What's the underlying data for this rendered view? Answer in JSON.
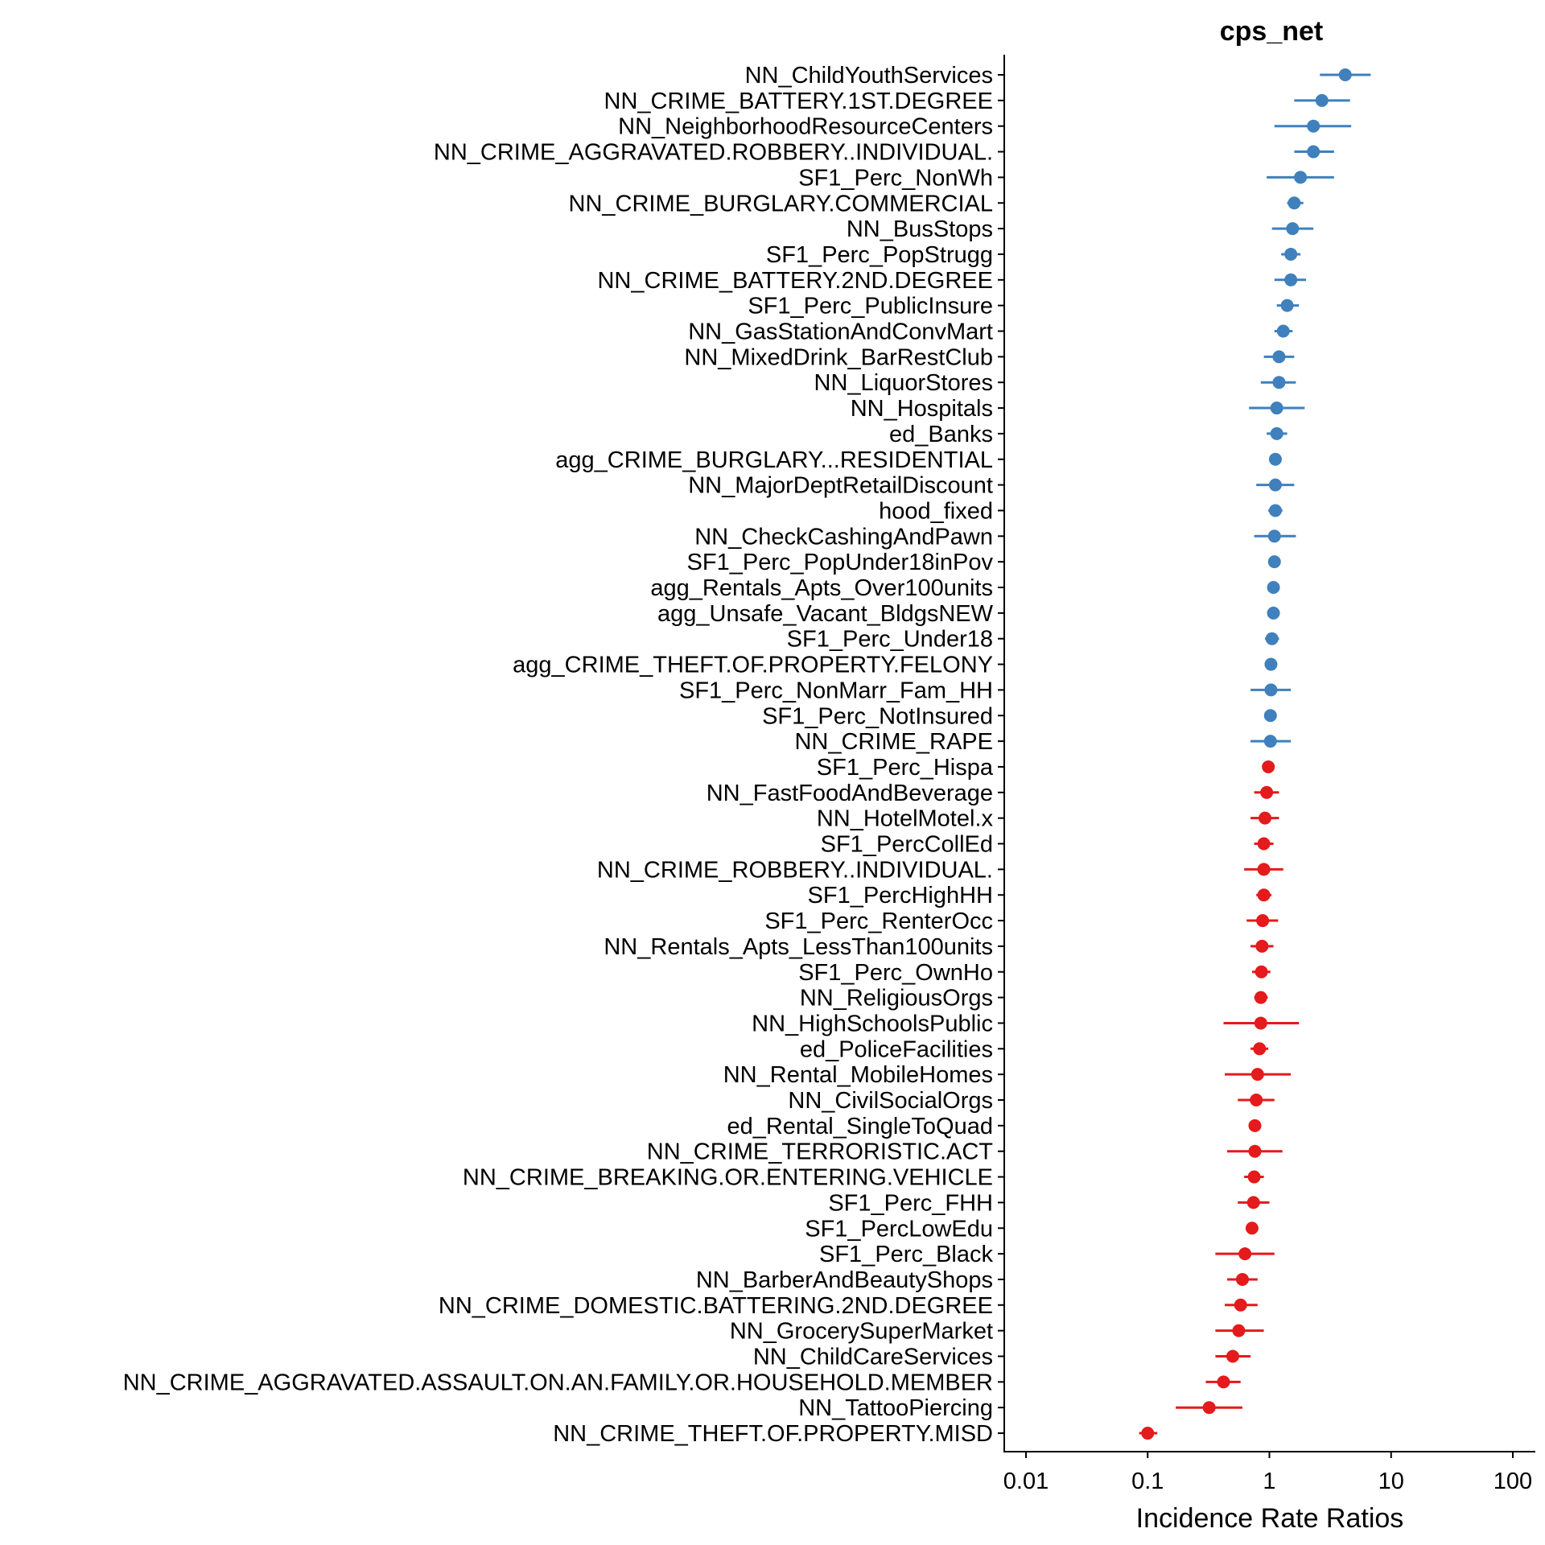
{
  "chart_data": {
    "type": "forest",
    "title": "cps_net",
    "xlabel": "Incidence Rate Ratios",
    "ylabel": "",
    "x_scale": "log10",
    "xlim": [
      0.01,
      100
    ],
    "x_ticks": [
      0.01,
      0.1,
      1,
      10,
      100
    ],
    "x_tick_labels": [
      "0.01",
      "0.1",
      "1",
      "10",
      "100"
    ],
    "grid": false,
    "colors": {
      "above_one": "#3f80bd",
      "below_one": "#e41a1c"
    },
    "rows": [
      {
        "label": "NN_ChildYouthServices",
        "estimate": 4.2,
        "lower": 2.6,
        "upper": 6.8
      },
      {
        "label": "NN_CRIME_BATTERY.1ST.DEGREE",
        "estimate": 2.7,
        "lower": 1.6,
        "upper": 4.6
      },
      {
        "label": "NN_NeighborhoodResourceCenters",
        "estimate": 2.3,
        "lower": 1.1,
        "upper": 4.7
      },
      {
        "label": "NN_CRIME_AGGRAVATED.ROBBERY..INDIVIDUAL.",
        "estimate": 2.3,
        "lower": 1.6,
        "upper": 3.4
      },
      {
        "label": "SF1_Perc_NonWh",
        "estimate": 1.8,
        "lower": 0.95,
        "upper": 3.4
      },
      {
        "label": "NN_CRIME_BURGLARY.COMMERCIAL",
        "estimate": 1.6,
        "lower": 1.4,
        "upper": 1.9
      },
      {
        "label": "NN_BusStops",
        "estimate": 1.55,
        "lower": 1.05,
        "upper": 2.3
      },
      {
        "label": "SF1_Perc_PopStrugg",
        "estimate": 1.5,
        "lower": 1.25,
        "upper": 1.8
      },
      {
        "label": "NN_CRIME_BATTERY.2ND.DEGREE",
        "estimate": 1.5,
        "lower": 1.1,
        "upper": 2.0
      },
      {
        "label": "SF1_Perc_PublicInsure",
        "estimate": 1.4,
        "lower": 1.15,
        "upper": 1.75
      },
      {
        "label": "NN_GasStationAndConvMart",
        "estimate": 1.3,
        "lower": 1.1,
        "upper": 1.55
      },
      {
        "label": "NN_MixedDrink_BarRestClub",
        "estimate": 1.2,
        "lower": 0.9,
        "upper": 1.6
      },
      {
        "label": "NN_LiquorStores",
        "estimate": 1.2,
        "lower": 0.85,
        "upper": 1.65
      },
      {
        "label": "NN_Hospitals",
        "estimate": 1.15,
        "lower": 0.68,
        "upper": 1.95
      },
      {
        "label": "ed_Banks",
        "estimate": 1.15,
        "lower": 0.95,
        "upper": 1.4
      },
      {
        "label": "agg_CRIME_BURGLARY...RESIDENTIAL",
        "estimate": 1.12,
        "lower": 1.0,
        "upper": 1.25
      },
      {
        "label": "NN_MajorDeptRetailDiscount",
        "estimate": 1.12,
        "lower": 0.78,
        "upper": 1.6
      },
      {
        "label": "hood_fixed",
        "estimate": 1.12,
        "lower": 0.98,
        "upper": 1.28
      },
      {
        "label": "NN_CheckCashingAndPawn",
        "estimate": 1.1,
        "lower": 0.75,
        "upper": 1.65
      },
      {
        "label": "SF1_Perc_PopUnder18inPov",
        "estimate": 1.1,
        "lower": 0.98,
        "upper": 1.22
      },
      {
        "label": "agg_Rentals_Apts_Over100units",
        "estimate": 1.08,
        "lower": 0.98,
        "upper": 1.2
      },
      {
        "label": "agg_Unsafe_Vacant_BldgsNEW",
        "estimate": 1.08,
        "lower": 0.97,
        "upper": 1.2
      },
      {
        "label": "SF1_Perc_Under18",
        "estimate": 1.05,
        "lower": 0.92,
        "upper": 1.2
      },
      {
        "label": "agg_CRIME_THEFT.OF.PROPERTY.FELONY",
        "estimate": 1.03,
        "lower": 0.93,
        "upper": 1.15
      },
      {
        "label": "SF1_Perc_NonMarr_Fam_HH",
        "estimate": 1.03,
        "lower": 0.7,
        "upper": 1.5
      },
      {
        "label": "SF1_Perc_NotInsured",
        "estimate": 1.02,
        "lower": 0.92,
        "upper": 1.13
      },
      {
        "label": "NN_CRIME_RAPE",
        "estimate": 1.02,
        "lower": 0.7,
        "upper": 1.5
      },
      {
        "label": "SF1_Perc_Hispa",
        "estimate": 0.98,
        "lower": 0.9,
        "upper": 1.07
      },
      {
        "label": "NN_FastFoodAndBeverage",
        "estimate": 0.95,
        "lower": 0.75,
        "upper": 1.2
      },
      {
        "label": "NN_HotelMotel.x",
        "estimate": 0.92,
        "lower": 0.7,
        "upper": 1.2
      },
      {
        "label": "SF1_PercCollEd",
        "estimate": 0.9,
        "lower": 0.75,
        "upper": 1.08
      },
      {
        "label": "NN_CRIME_ROBBERY..INDIVIDUAL.",
        "estimate": 0.9,
        "lower": 0.62,
        "upper": 1.3
      },
      {
        "label": "SF1_PercHighHH",
        "estimate": 0.9,
        "lower": 0.78,
        "upper": 1.04
      },
      {
        "label": "SF1_Perc_RenterOcc",
        "estimate": 0.88,
        "lower": 0.65,
        "upper": 1.18
      },
      {
        "label": "NN_Rentals_Apts_LessThan100units",
        "estimate": 0.87,
        "lower": 0.7,
        "upper": 1.08
      },
      {
        "label": "SF1_Perc_OwnHo",
        "estimate": 0.86,
        "lower": 0.72,
        "upper": 1.02
      },
      {
        "label": "NN_ReligiousOrgs",
        "estimate": 0.85,
        "lower": 0.75,
        "upper": 0.97
      },
      {
        "label": "NN_HighSchoolsPublic",
        "estimate": 0.85,
        "lower": 0.42,
        "upper": 1.75
      },
      {
        "label": "ed_PoliceFacilities",
        "estimate": 0.83,
        "lower": 0.7,
        "upper": 0.98
      },
      {
        "label": "NN_Rental_MobileHomes",
        "estimate": 0.8,
        "lower": 0.43,
        "upper": 1.5
      },
      {
        "label": "NN_CivilSocialOrgs",
        "estimate": 0.78,
        "lower": 0.55,
        "upper": 1.1
      },
      {
        "label": "ed_Rental_SingleToQuad",
        "estimate": 0.76,
        "lower": 0.68,
        "upper": 0.85
      },
      {
        "label": "NN_CRIME_TERRORISTIC.ACT",
        "estimate": 0.76,
        "lower": 0.45,
        "upper": 1.28
      },
      {
        "label": "NN_CRIME_BREAKING.OR.ENTERING.VEHICLE",
        "estimate": 0.75,
        "lower": 0.62,
        "upper": 0.9
      },
      {
        "label": "SF1_Perc_FHH",
        "estimate": 0.74,
        "lower": 0.55,
        "upper": 1.0
      },
      {
        "label": "SF1_PercLowEdu",
        "estimate": 0.72,
        "lower": 0.64,
        "upper": 0.81
      },
      {
        "label": "SF1_Perc_Black",
        "estimate": 0.63,
        "lower": 0.36,
        "upper": 1.1
      },
      {
        "label": "NN_BarberAndBeautyShops",
        "estimate": 0.6,
        "lower": 0.45,
        "upper": 0.8
      },
      {
        "label": "NN_CRIME_DOMESTIC.BATTERING.2ND.DEGREE",
        "estimate": 0.58,
        "lower": 0.43,
        "upper": 0.8
      },
      {
        "label": "NN_GrocerySuperMarket",
        "estimate": 0.56,
        "lower": 0.36,
        "upper": 0.9
      },
      {
        "label": "NN_ChildCareServices",
        "estimate": 0.5,
        "lower": 0.36,
        "upper": 0.7
      },
      {
        "label": "NN_CRIME_AGGRAVATED.ASSAULT.ON.AN.FAMILY.OR.HOUSEHOLD.MEMBER",
        "estimate": 0.42,
        "lower": 0.3,
        "upper": 0.58
      },
      {
        "label": "NN_TattooPiercing",
        "estimate": 0.32,
        "lower": 0.17,
        "upper": 0.6
      },
      {
        "label": "NN_CRIME_THEFT.OF.PROPERTY.MISD",
        "estimate": 0.1,
        "lower": 0.085,
        "upper": 0.12
      }
    ]
  }
}
